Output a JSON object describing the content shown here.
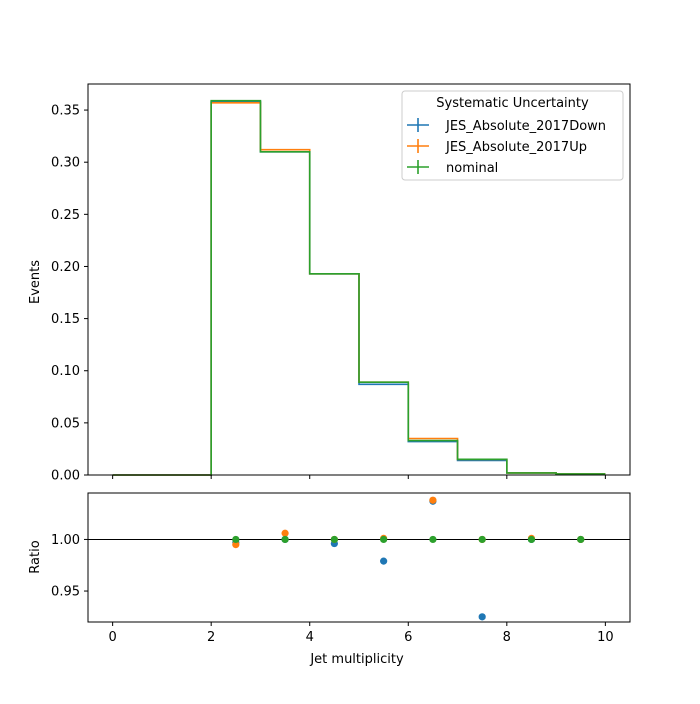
{
  "chart_data": [
    {
      "type": "step",
      "panel": "main",
      "title": "",
      "xlabel": "",
      "ylabel": "Events",
      "xlim": [
        -0.5,
        10.5
      ],
      "ylim": [
        0,
        0.375
      ],
      "xticks": [
        0,
        2,
        4,
        6,
        8,
        10
      ],
      "yticks": [
        0.0,
        0.05,
        0.1,
        0.15,
        0.2,
        0.25,
        0.3,
        0.35
      ],
      "ytick_labels": [
        "0.00",
        "0.05",
        "0.10",
        "0.15",
        "0.20",
        "0.25",
        "0.30",
        "0.35"
      ],
      "bin_edges": [
        0,
        1,
        2,
        3,
        4,
        5,
        6,
        7,
        8,
        9,
        10
      ],
      "legend": {
        "title": "Systematic Uncertainty",
        "placement": "top-right"
      },
      "series": [
        {
          "name": "JES_Absolute_2017Down",
          "color": "#1f77b4",
          "values": [
            0,
            0,
            0.358,
            0.31,
            0.193,
            0.087,
            0.032,
            0.014,
            0.002,
            0.001
          ]
        },
        {
          "name": "JES_Absolute_2017Up",
          "color": "#ff7f0e",
          "values": [
            0,
            0,
            0.357,
            0.312,
            0.193,
            0.089,
            0.035,
            0.015,
            0.002,
            0.001
          ]
        },
        {
          "name": "nominal",
          "color": "#2ca02c",
          "values": [
            0,
            0,
            0.359,
            0.31,
            0.193,
            0.089,
            0.033,
            0.015,
            0.002,
            0.001
          ]
        }
      ]
    },
    {
      "type": "scatter",
      "panel": "ratio",
      "xlabel": "Jet multiplicity",
      "ylabel": "Ratio",
      "xlim": [
        -0.5,
        10.5
      ],
      "ylim": [
        0.92,
        1.045
      ],
      "xticks": [
        0,
        2,
        4,
        6,
        8,
        10
      ],
      "yticks": [
        0.95,
        1.0
      ],
      "ytick_labels": [
        "0.95",
        "1.00"
      ],
      "reference_line": 1.0,
      "x": [
        2.5,
        3.5,
        4.5,
        5.5,
        6.5,
        7.5,
        8.5,
        9.5
      ],
      "series": [
        {
          "name": "JES_Absolute_2017Down",
          "color": "#1f77b4",
          "values": [
            0.997,
            1.0,
            0.996,
            0.979,
            1.037,
            0.925,
            1.0,
            1.0
          ]
        },
        {
          "name": "JES_Absolute_2017Up",
          "color": "#ff7f0e",
          "values": [
            0.995,
            1.006,
            1.0,
            1.001,
            1.038,
            1.0,
            1.001,
            1.0
          ]
        },
        {
          "name": "nominal",
          "color": "#2ca02c",
          "values": [
            1.0,
            1.0,
            1.0,
            1.0,
            1.0,
            1.0,
            1.0,
            1.0
          ]
        }
      ]
    }
  ]
}
